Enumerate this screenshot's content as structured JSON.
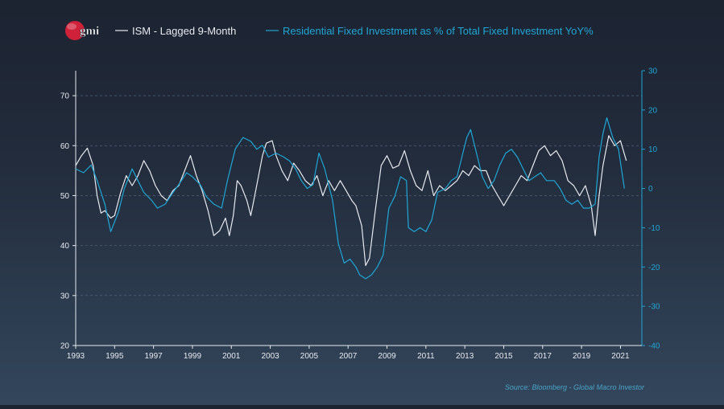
{
  "logo": {
    "text": "gmi",
    "color": "#d0213a"
  },
  "legend": [
    {
      "label": "ISM - Lagged 9-Month",
      "color": "#e6eaf0"
    },
    {
      "label": "Residential Fixed Investment as % of Total Fixed Investment YoY%",
      "color": "#1fa6d6"
    }
  ],
  "source": "Source: Bloomberg - Global Macro Investor",
  "chart_data": {
    "type": "line",
    "title": "",
    "x_ticks": [
      "1993",
      "1995",
      "1997",
      "1999",
      "2001",
      "2003",
      "2005",
      "2007",
      "2009",
      "2011",
      "2013",
      "2015",
      "2017",
      "2019",
      "2021"
    ],
    "left_axis": {
      "ylim": [
        20,
        75
      ],
      "ticks": [
        20,
        30,
        40,
        50,
        60,
        70
      ],
      "gridlines": [
        30,
        40,
        50,
        60,
        70
      ]
    },
    "right_axis": {
      "ylim": [
        -40,
        30
      ],
      "ticks": [
        -40,
        -30,
        -20,
        -10,
        0,
        10,
        20,
        30
      ]
    },
    "series": [
      {
        "name": "ISM - Lagged 9-Month",
        "axis": "left",
        "color": "#e6eaf0",
        "x": [
          1993.0,
          1993.3,
          1993.6,
          1993.9,
          1994.1,
          1994.3,
          1994.5,
          1994.8,
          1995.0,
          1995.3,
          1995.6,
          1995.9,
          1996.2,
          1996.5,
          1996.8,
          1997.1,
          1997.4,
          1997.7,
          1998.0,
          1998.3,
          1998.6,
          1998.9,
          1999.2,
          1999.5,
          1999.8,
          2000.1,
          2000.4,
          2000.7,
          2000.9,
          2001.1,
          2001.3,
          2001.5,
          2001.8,
          2002.0,
          2002.2,
          2002.4,
          2002.6,
          2002.8,
          2003.1,
          2003.3,
          2003.6,
          2003.9,
          2004.2,
          2004.5,
          2004.8,
          2005.1,
          2005.4,
          2005.7,
          2006.0,
          2006.3,
          2006.6,
          2006.9,
          2007.2,
          2007.4,
          2007.7,
          2007.9,
          2008.1,
          2008.4,
          2008.7,
          2009.0,
          2009.3,
          2009.6,
          2009.9,
          2010.2,
          2010.5,
          2010.8,
          2011.1,
          2011.4,
          2011.7,
          2012.0,
          2012.3,
          2012.6,
          2012.9,
          2013.2,
          2013.5,
          2013.8,
          2014.1,
          2014.4,
          2014.7,
          2015.0,
          2015.3,
          2015.6,
          2015.9,
          2016.2,
          2016.5,
          2016.8,
          2017.1,
          2017.4,
          2017.7,
          2018.0,
          2018.3,
          2018.6,
          2018.9,
          2019.2,
          2019.5,
          2019.7,
          2019.9,
          2020.1,
          2020.4,
          2020.7,
          2021.0,
          2021.3
        ],
        "values": [
          56,
          58,
          59.5,
          56,
          50,
          46.5,
          47,
          45.5,
          46,
          50.5,
          54,
          52,
          54,
          57,
          55,
          52,
          50,
          49,
          51,
          52,
          55,
          58,
          54,
          51,
          47,
          42,
          43,
          45.5,
          42,
          46,
          53,
          52,
          49,
          46,
          50,
          54,
          58,
          60.5,
          61,
          58,
          55,
          53,
          56.5,
          55,
          53,
          52,
          54,
          50,
          53,
          51,
          53,
          51,
          49,
          48,
          44,
          36,
          37.5,
          47,
          56,
          58,
          55.5,
          56,
          59,
          55,
          52,
          51,
          55,
          50,
          52,
          51,
          52,
          53,
          55,
          54,
          56,
          55,
          55,
          52,
          50,
          48,
          50,
          52,
          54,
          53,
          56,
          59,
          60,
          58,
          59,
          57,
          53,
          52,
          50,
          52,
          48,
          42,
          50,
          56,
          62,
          60,
          61,
          57
        ]
      },
      {
        "name": "Residential Fixed Investment as % of Total Fixed Investment YoY%",
        "axis": "right",
        "color": "#1fa6d6",
        "x": [
          1993.0,
          1993.4,
          1993.8,
          1994.1,
          1994.5,
          1994.8,
          1995.2,
          1995.5,
          1995.9,
          1996.2,
          1996.5,
          1996.9,
          1997.2,
          1997.6,
          1998.0,
          1998.3,
          1998.7,
          1999.0,
          1999.4,
          1999.7,
          2000.1,
          2000.5,
          2000.8,
          2001.2,
          2001.6,
          2002.0,
          2002.3,
          2002.6,
          2002.9,
          2003.3,
          2003.7,
          2004.0,
          2004.3,
          2004.6,
          2004.9,
          2005.2,
          2005.5,
          2005.8,
          2006.2,
          2006.5,
          2006.8,
          2007.1,
          2007.4,
          2007.6,
          2007.9,
          2008.2,
          2008.5,
          2008.8,
          2009.1,
          2009.4,
          2009.7,
          2010.0,
          2010.1,
          2010.4,
          2010.7,
          2011.0,
          2011.3,
          2011.6,
          2012.0,
          2012.3,
          2012.6,
          2012.9,
          2013.1,
          2013.3,
          2013.6,
          2013.9,
          2014.2,
          2014.5,
          2014.8,
          2015.1,
          2015.4,
          2015.7,
          2016.0,
          2016.3,
          2016.6,
          2016.9,
          2017.2,
          2017.6,
          2017.9,
          2018.2,
          2018.5,
          2018.8,
          2019.1,
          2019.4,
          2019.7,
          2019.9,
          2020.1,
          2020.3,
          2020.6,
          2020.9,
          2021.2
        ],
        "values": [
          5,
          4,
          6,
          2,
          -4,
          -11,
          -6,
          0,
          5,
          2,
          -1,
          -3,
          -5,
          -4,
          -1,
          1,
          4,
          3,
          1,
          -2,
          -4,
          -5,
          2,
          10,
          13,
          12,
          10,
          11,
          8,
          9,
          8,
          7,
          5,
          2,
          0,
          1,
          9,
          5,
          -3,
          -14,
          -19,
          -18,
          -20,
          -22,
          -23,
          -22,
          -20,
          -17,
          -5,
          -2,
          3,
          2,
          -10,
          -11,
          -10,
          -11,
          -8,
          -1,
          0,
          2,
          3,
          9,
          13,
          15,
          9,
          3,
          0,
          2,
          6,
          9,
          10,
          8,
          5,
          2,
          3,
          4,
          2,
          2,
          0,
          -3,
          -4,
          -3,
          -5,
          -5,
          -4,
          8,
          14,
          18,
          13,
          10,
          0
        ]
      }
    ]
  }
}
